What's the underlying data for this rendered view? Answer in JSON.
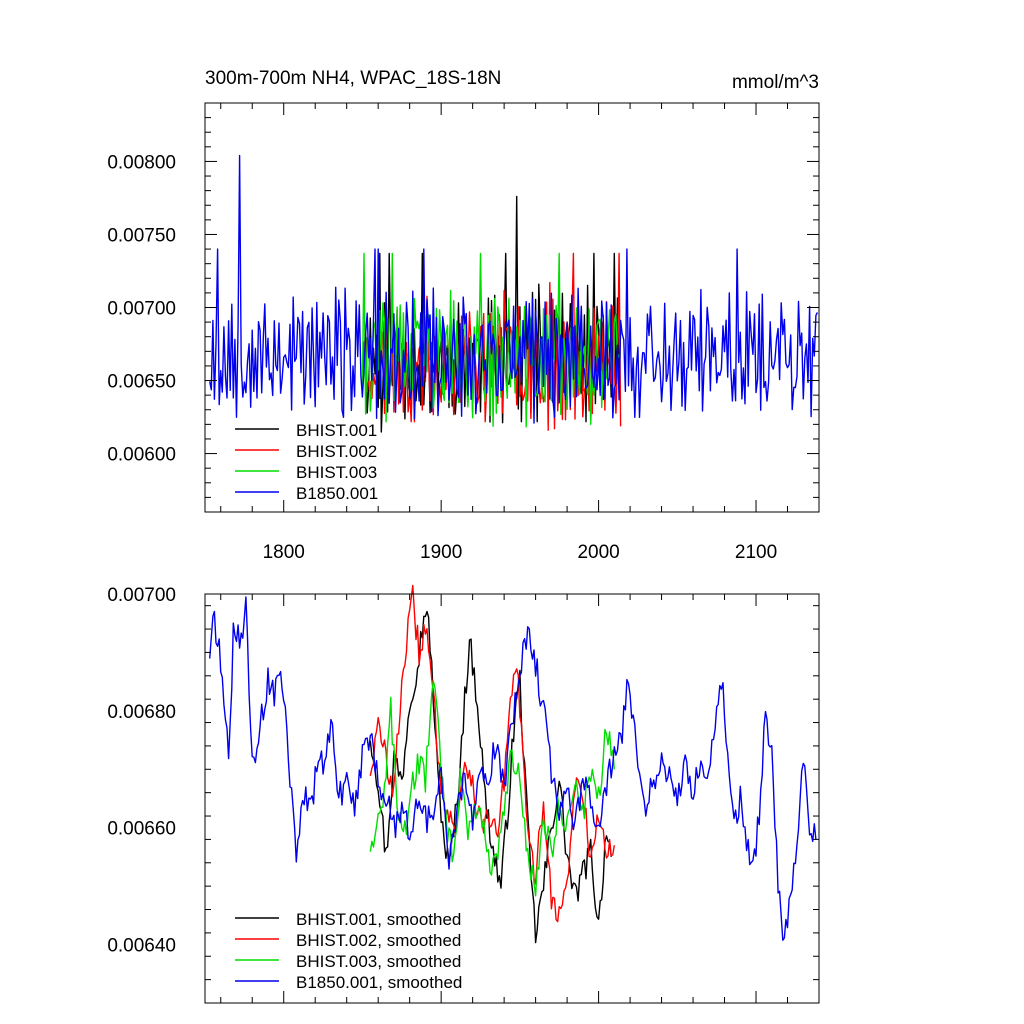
{
  "chart_data": [
    {
      "type": "line",
      "title": "300m-700m NH4, WPAC_18S-18N",
      "units": "mmol/m^3",
      "xlim": [
        1750,
        2140
      ],
      "ylim": [
        0.0056,
        0.0084
      ],
      "yticks": [
        0.006,
        0.0065,
        0.007,
        0.0075,
        0.008
      ],
      "yticklabels": [
        "0.00600",
        "0.00650",
        "0.00700",
        "0.00750",
        "0.00800"
      ],
      "xticks": [
        1800,
        1900,
        2000,
        2100
      ],
      "xticklabels": [
        "1800",
        "1900",
        "2000",
        "2100"
      ],
      "grid": false,
      "legend_position": "bottom-left",
      "series": [
        {
          "name": "BHIST.001",
          "color": "#000000",
          "start": 1850,
          "end": 2014,
          "mean": 0.00665,
          "amp": 0.00045,
          "min": 0.00606,
          "max": 0.00776,
          "seed": 11
        },
        {
          "name": "BHIST.002",
          "color": "#ff0000",
          "start": 1850,
          "end": 2014,
          "mean": 0.00665,
          "amp": 0.00045,
          "min": 0.00602,
          "max": 0.0074,
          "seed": 23
        },
        {
          "name": "BHIST.003",
          "color": "#00dd00",
          "start": 1850,
          "end": 2014,
          "mean": 0.00665,
          "amp": 0.00045,
          "min": 0.00599,
          "max": 0.00748,
          "seed": 37
        },
        {
          "name": "B1850.001",
          "color": "#0000ee",
          "start": 1753,
          "end": 2139,
          "mean": 0.00668,
          "amp": 0.00045,
          "min": 0.00603,
          "max": 0.00804,
          "seed": 53
        }
      ]
    },
    {
      "type": "line",
      "xlim": [
        1750,
        2140
      ],
      "ylim": [
        0.0063,
        0.007
      ],
      "yticks": [
        0.0064,
        0.0066,
        0.0068,
        0.007
      ],
      "yticklabels": [
        "0.00640",
        "0.00660",
        "0.00680",
        "0.00700"
      ],
      "grid": false,
      "legend_position": "bottom-left",
      "series": [
        {
          "name": "BHIST.001, smoothed",
          "color": "#000000",
          "start": 1855,
          "end": 2008,
          "points": [
            [
              1855,
              0.00676
            ],
            [
              1860,
              0.00668
            ],
            [
              1865,
              0.00655
            ],
            [
              1870,
              0.00672
            ],
            [
              1875,
              0.00668
            ],
            [
              1880,
              0.00682
            ],
            [
              1885,
              0.00688
            ],
            [
              1890,
              0.00698
            ],
            [
              1893,
              0.00692
            ],
            [
              1898,
              0.00668
            ],
            [
              1902,
              0.00658
            ],
            [
              1905,
              0.00653
            ],
            [
              1910,
              0.00664
            ],
            [
              1915,
              0.00682
            ],
            [
              1918,
              0.00692
            ],
            [
              1923,
              0.00682
            ],
            [
              1928,
              0.00665
            ],
            [
              1933,
              0.00656
            ],
            [
              1938,
              0.0065
            ],
            [
              1942,
              0.00662
            ],
            [
              1947,
              0.0068
            ],
            [
              1950,
              0.00685
            ],
            [
              1955,
              0.0066
            ],
            [
              1958,
              0.00648
            ],
            [
              1960,
              0.00642
            ],
            [
              1965,
              0.0065
            ],
            [
              1970,
              0.0066
            ],
            [
              1975,
              0.00668
            ],
            [
              1980,
              0.00655
            ],
            [
              1985,
              0.00648
            ],
            [
              1990,
              0.00652
            ],
            [
              1995,
              0.00656
            ],
            [
              2000,
              0.00643
            ],
            [
              2005,
              0.0066
            ],
            [
              2008,
              0.00655
            ]
          ]
        },
        {
          "name": "BHIST.002, smoothed",
          "color": "#ff0000",
          "start": 1855,
          "end": 2010,
          "points": [
            [
              1855,
              0.0067
            ],
            [
              1860,
              0.00677
            ],
            [
              1865,
              0.00672
            ],
            [
              1870,
              0.00666
            ],
            [
              1875,
              0.00685
            ],
            [
              1878,
              0.00692
            ],
            [
              1882,
              0.00699
            ],
            [
              1886,
              0.0069
            ],
            [
              1890,
              0.00695
            ],
            [
              1895,
              0.00682
            ],
            [
              1900,
              0.00668
            ],
            [
              1905,
              0.00662
            ],
            [
              1910,
              0.0066
            ],
            [
              1915,
              0.00672
            ],
            [
              1920,
              0.00668
            ],
            [
              1925,
              0.0066
            ],
            [
              1930,
              0.00663
            ],
            [
              1935,
              0.00658
            ],
            [
              1940,
              0.00668
            ],
            [
              1945,
              0.00683
            ],
            [
              1948,
              0.00689
            ],
            [
              1952,
              0.00672
            ],
            [
              1955,
              0.00658
            ],
            [
              1960,
              0.00652
            ],
            [
              1965,
              0.00665
            ],
            [
              1970,
              0.00648
            ],
            [
              1975,
              0.00645
            ],
            [
              1980,
              0.0065
            ],
            [
              1985,
              0.00668
            ],
            [
              1990,
              0.00665
            ],
            [
              1995,
              0.00655
            ],
            [
              2000,
              0.00662
            ],
            [
              2005,
              0.00656
            ],
            [
              2010,
              0.00657
            ]
          ]
        },
        {
          "name": "BHIST.003, smoothed",
          "color": "#00dd00",
          "start": 1855,
          "end": 2010,
          "points": [
            [
              1855,
              0.00657
            ],
            [
              1860,
              0.00662
            ],
            [
              1865,
              0.00668
            ],
            [
              1868,
              0.0068
            ],
            [
              1872,
              0.00665
            ],
            [
              1876,
              0.00658
            ],
            [
              1880,
              0.00664
            ],
            [
              1885,
              0.00672
            ],
            [
              1890,
              0.00668
            ],
            [
              1895,
              0.00686
            ],
            [
              1898,
              0.0068
            ],
            [
              1902,
              0.00662
            ],
            [
              1908,
              0.00655
            ],
            [
              1912,
              0.00668
            ],
            [
              1917,
              0.0066
            ],
            [
              1922,
              0.00664
            ],
            [
              1928,
              0.0066
            ],
            [
              1932,
              0.00652
            ],
            [
              1938,
              0.00658
            ],
            [
              1944,
              0.00672
            ],
            [
              1950,
              0.00668
            ],
            [
              1955,
              0.00655
            ],
            [
              1960,
              0.0065
            ],
            [
              1965,
              0.00662
            ],
            [
              1970,
              0.00655
            ],
            [
              1975,
              0.00665
            ],
            [
              1980,
              0.0066
            ],
            [
              1985,
              0.00668
            ],
            [
              1990,
              0.00662
            ],
            [
              1995,
              0.0067
            ],
            [
              2000,
              0.00665
            ],
            [
              2005,
              0.00677
            ],
            [
              2010,
              0.0067
            ]
          ]
        },
        {
          "name": "B1850.001, smoothed",
          "color": "#0000ee",
          "start": 1753,
          "end": 2138,
          "points": [
            [
              1753,
              0.0069
            ],
            [
              1756,
              0.00696
            ],
            [
              1760,
              0.00688
            ],
            [
              1765,
              0.00672
            ],
            [
              1768,
              0.00693
            ],
            [
              1772,
              0.00692
            ],
            [
              1776,
              0.00697
            ],
            [
              1780,
              0.0067
            ],
            [
              1785,
              0.00678
            ],
            [
              1790,
              0.00685
            ],
            [
              1794,
              0.00683
            ],
            [
              1798,
              0.00689
            ],
            [
              1802,
              0.00676
            ],
            [
              1806,
              0.00662
            ],
            [
              1808,
              0.00654
            ],
            [
              1812,
              0.00666
            ],
            [
              1818,
              0.00664
            ],
            [
              1822,
              0.00672
            ],
            [
              1826,
              0.0067
            ],
            [
              1830,
              0.00678
            ],
            [
              1835,
              0.00665
            ],
            [
              1840,
              0.00668
            ],
            [
              1845,
              0.00663
            ],
            [
              1850,
              0.00672
            ],
            [
              1855,
              0.00676
            ],
            [
              1860,
              0.00668
            ],
            [
              1865,
              0.00665
            ],
            [
              1870,
              0.0066
            ],
            [
              1875,
              0.00664
            ],
            [
              1880,
              0.00658
            ],
            [
              1885,
              0.00665
            ],
            [
              1890,
              0.00662
            ],
            [
              1895,
              0.0066
            ],
            [
              1900,
              0.0067
            ],
            [
              1905,
              0.00655
            ],
            [
              1910,
              0.00663
            ],
            [
              1915,
              0.00668
            ],
            [
              1920,
              0.0066
            ],
            [
              1925,
              0.00672
            ],
            [
              1930,
              0.00668
            ],
            [
              1935,
              0.00675
            ],
            [
              1940,
              0.00667
            ],
            [
              1945,
              0.00678
            ],
            [
              1950,
              0.00688
            ],
            [
              1955,
              0.00693
            ],
            [
              1960,
              0.00688
            ],
            [
              1965,
              0.0068
            ],
            [
              1970,
              0.0067
            ],
            [
              1975,
              0.00663
            ],
            [
              1980,
              0.00666
            ],
            [
              1985,
              0.0066
            ],
            [
              1990,
              0.00668
            ],
            [
              1995,
              0.00665
            ],
            [
              2000,
              0.0066
            ],
            [
              2005,
              0.00668
            ],
            [
              2010,
              0.00672
            ],
            [
              2015,
              0.00676
            ],
            [
              2018,
              0.00684
            ],
            [
              2022,
              0.0068
            ],
            [
              2026,
              0.0067
            ],
            [
              2030,
              0.00663
            ],
            [
              2035,
              0.00668
            ],
            [
              2040,
              0.00672
            ],
            [
              2045,
              0.00668
            ],
            [
              2050,
              0.00665
            ],
            [
              2055,
              0.0067
            ],
            [
              2060,
              0.00665
            ],
            [
              2065,
              0.00673
            ],
            [
              2070,
              0.00668
            ],
            [
              2075,
              0.0068
            ],
            [
              2078,
              0.00686
            ],
            [
              2082,
              0.00672
            ],
            [
              2086,
              0.0066
            ],
            [
              2090,
              0.00665
            ],
            [
              2094,
              0.00658
            ],
            [
              2098,
              0.00652
            ],
            [
              2102,
              0.00663
            ],
            [
              2106,
              0.0068
            ],
            [
              2110,
              0.00672
            ],
            [
              2114,
              0.0065
            ],
            [
              2118,
              0.0064
            ],
            [
              2122,
              0.00648
            ],
            [
              2126,
              0.00656
            ],
            [
              2130,
              0.00672
            ],
            [
              2134,
              0.0066
            ],
            [
              2138,
              0.00658
            ]
          ]
        }
      ]
    }
  ]
}
